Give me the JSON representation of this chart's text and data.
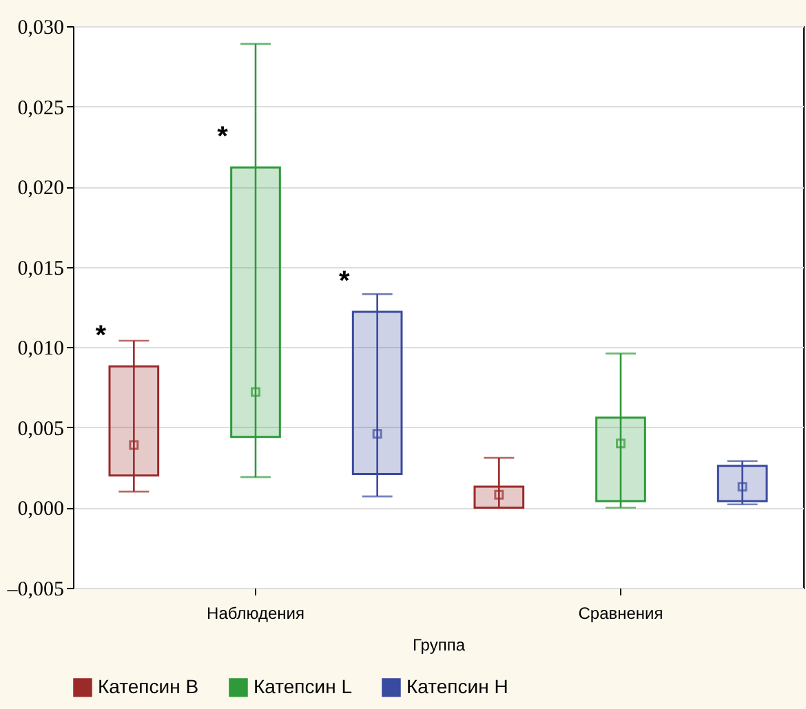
{
  "chart_data": {
    "type": "box",
    "xlabel": "Группа",
    "categories": [
      "Наблюдения",
      "Сравнения"
    ],
    "series": [
      {
        "name": "Катепсин B",
        "color": "#9b2a2a",
        "boxes": [
          {
            "low": 0.001,
            "q1": 0.002,
            "median": 0.0039,
            "q3": 0.0088,
            "high": 0.0104
          },
          {
            "low": 0.0,
            "q1": 0.0,
            "median": 0.0008,
            "q3": 0.0013,
            "high": 0.0031
          }
        ]
      },
      {
        "name": "Катепсин L",
        "color": "#2e9a3a",
        "boxes": [
          {
            "low": 0.0019,
            "q1": 0.0044,
            "median": 0.0072,
            "q3": 0.0212,
            "high": 0.0289
          },
          {
            "low": 0.0,
            "q1": 0.0004,
            "median": 0.004,
            "q3": 0.0056,
            "high": 0.0096
          }
        ]
      },
      {
        "name": "Катепсин H",
        "color": "#3a4aa0",
        "boxes": [
          {
            "low": 0.0007,
            "q1": 0.0021,
            "median": 0.0046,
            "q3": 0.0122,
            "high": 0.0133
          },
          {
            "low": 0.0002,
            "q1": 0.0004,
            "median": 0.0013,
            "q3": 0.0026,
            "high": 0.0029
          }
        ]
      }
    ],
    "ylim": [
      -0.005,
      0.03
    ],
    "yticks": [
      {
        "value": -0.005,
        "label": "–0,005"
      },
      {
        "value": 0,
        "label": "0,000"
      },
      {
        "value": 0.005,
        "label": "0,005"
      },
      {
        "value": 0.01,
        "label": "0,010"
      },
      {
        "value": 0.015,
        "label": "0,015"
      },
      {
        "value": 0.02,
        "label": "0,020"
      },
      {
        "value": 0.025,
        "label": "0,025"
      },
      {
        "value": 0.03,
        "label": "0,030"
      }
    ],
    "grid": "y",
    "legend": "bottom left",
    "annotations": [
      "*",
      "*",
      "*"
    ]
  }
}
